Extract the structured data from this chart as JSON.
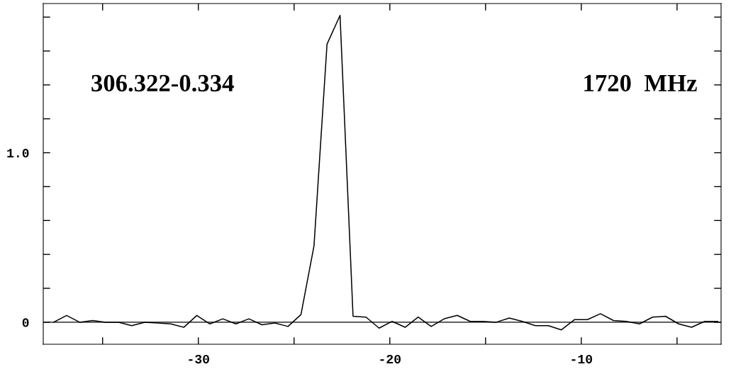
{
  "chart_data": {
    "type": "line",
    "x": [
      -37.56,
      -36.88,
      -36.2,
      -35.52,
      -34.84,
      -34.16,
      -33.48,
      -32.8,
      -32.12,
      -31.44,
      -30.76,
      -30.08,
      -29.4,
      -28.72,
      -28.04,
      -27.36,
      -26.68,
      -26.0,
      -25.32,
      -24.64,
      -23.96,
      -23.28,
      -22.6,
      -21.92,
      -21.24,
      -20.56,
      -19.88,
      -19.2,
      -18.52,
      -17.84,
      -17.16,
      -16.48,
      -15.8,
      -15.12,
      -14.44,
      -13.76,
      -13.08,
      -12.4,
      -11.72,
      -11.04,
      -10.36,
      -9.68,
      -9.0,
      -8.32,
      -7.64,
      -6.96,
      -6.28,
      -5.6,
      -4.92,
      -4.24,
      -3.56,
      -2.88
    ],
    "series": [
      {
        "color": "#000000",
        "values": [
          0.0,
          0.04,
          0.0,
          0.01,
          0.0,
          0.0,
          -0.02,
          0.0,
          -0.005,
          -0.01,
          -0.03,
          0.04,
          -0.01,
          0.02,
          -0.01,
          0.02,
          -0.015,
          -0.005,
          -0.025,
          0.045,
          0.45,
          1.64,
          1.81,
          0.035,
          0.03,
          -0.035,
          0.005,
          -0.03,
          0.03,
          -0.025,
          0.02,
          0.04,
          0.005,
          0.005,
          0.0,
          0.025,
          0.005,
          -0.02,
          -0.02,
          -0.045,
          0.015,
          0.015,
          0.05,
          0.01,
          0.005,
          -0.01,
          0.03,
          0.035,
          -0.01,
          -0.03,
          0.005,
          0.005
        ]
      }
    ],
    "xlim": [
      -38.1,
      -2.7
    ],
    "xticks": [
      {
        "value": -35,
        "label": null
      },
      {
        "value": -30,
        "label": "-30"
      },
      {
        "value": -25,
        "label": null
      },
      {
        "value": -20,
        "label": "-20"
      },
      {
        "value": -15,
        "label": null
      },
      {
        "value": -10,
        "label": "-10"
      },
      {
        "value": -5,
        "label": null
      }
    ],
    "ylim": [
      -0.13,
      1.88
    ],
    "yticks": [
      {
        "value": 0,
        "label": "0"
      },
      {
        "value": 0.2,
        "label": null
      },
      {
        "value": 0.4,
        "label": null
      },
      {
        "value": 0.6,
        "label": null
      },
      {
        "value": 0.8,
        "label": null
      },
      {
        "value": 1.0,
        "label": "1.0"
      },
      {
        "value": 1.2,
        "label": null
      },
      {
        "value": 1.4,
        "label": null
      },
      {
        "value": 1.6,
        "label": null
      },
      {
        "value": 1.8,
        "label": null
      }
    ],
    "ref_lines": [
      {
        "axis": "y",
        "value": 0,
        "color": "#000000"
      }
    ],
    "annotations": [
      {
        "text": "306.322-0.334"
      },
      {
        "text": "1720  MHz"
      }
    ],
    "grid": false,
    "legend": false,
    "marker": "none",
    "line_style": "solid"
  }
}
